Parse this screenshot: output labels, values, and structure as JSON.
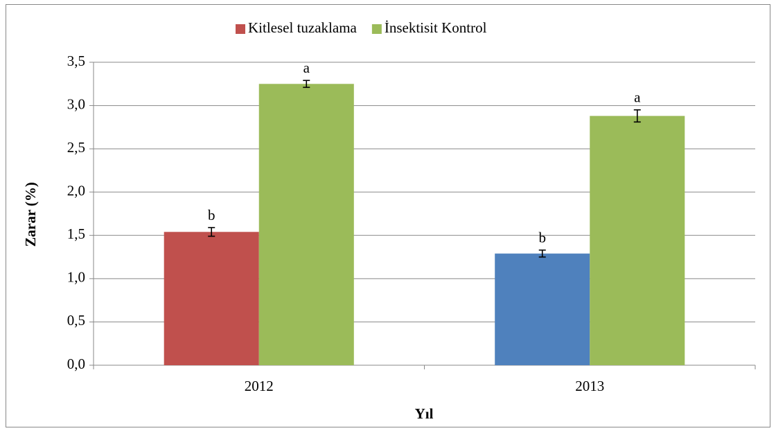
{
  "chart_data": {
    "type": "bar",
    "categories": [
      "2012",
      "2013"
    ],
    "series": [
      {
        "name": "Kitlesel tuzaklama",
        "color": "#c0504d",
        "colors": [
          "#c0504d",
          "#4f81bd"
        ],
        "values": [
          1.54,
          1.29
        ],
        "errors": [
          0.05,
          0.04
        ],
        "letters": [
          "b",
          "b"
        ]
      },
      {
        "name": "İnsektisit Kontrol",
        "color": "#9bbb59",
        "values": [
          3.25,
          2.88
        ],
        "errors": [
          0.04,
          0.07
        ],
        "letters": [
          "a",
          "a"
        ]
      }
    ],
    "y_label": "Zarar (%)",
    "x_label": "Yıl",
    "ylim": [
      0,
      3.5
    ],
    "yticks": [
      {
        "value": 0,
        "label": "0,0"
      },
      {
        "value": 0.5,
        "label": "0,5"
      },
      {
        "value": 1,
        "label": "1,0"
      },
      {
        "value": 1.5,
        "label": "1,5"
      },
      {
        "value": 2,
        "label": "2,0"
      },
      {
        "value": 2.5,
        "label": "2,5"
      },
      {
        "value": 3,
        "label": "3,0"
      },
      {
        "value": 3.5,
        "label": "3,5"
      }
    ],
    "grid": true,
    "legend": "top"
  }
}
